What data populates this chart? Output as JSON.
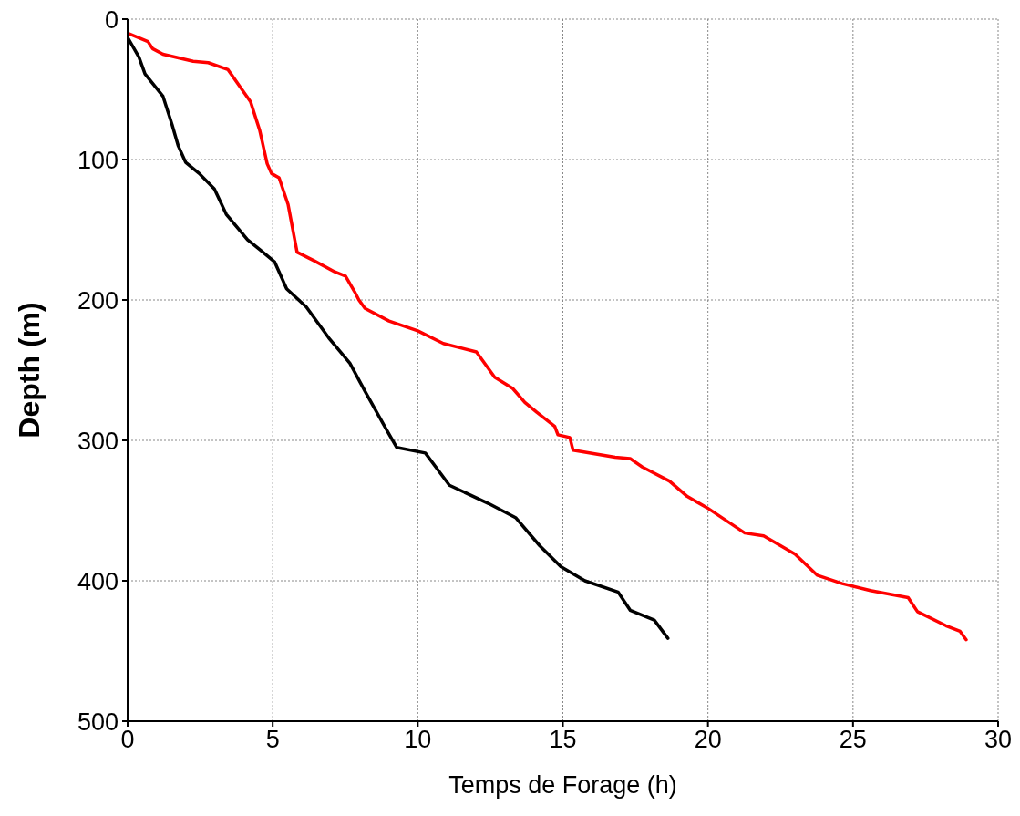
{
  "chart_data": {
    "type": "line",
    "xlabel": "Temps de Forage (h)",
    "ylabel": "Depth (m)",
    "xlim": [
      0,
      30
    ],
    "xticks": [
      0,
      5,
      10,
      15,
      20,
      25,
      30
    ],
    "ylim": [
      500,
      0
    ],
    "yticks": [
      0,
      100,
      200,
      300,
      400,
      500
    ],
    "grid": true,
    "marker": "none",
    "line_style": "solid",
    "series": [
      {
        "color": "#ff0000",
        "x": [
          0,
          0.7,
          0.86,
          1.22,
          2.26,
          2.78,
          3.46,
          3.87,
          4.24,
          4.55,
          4.81,
          4.96,
          5.22,
          5.53,
          5.84,
          6.42,
          7.14,
          7.51,
          7.82,
          7.97,
          8.18,
          9.01,
          10.0,
          10.88,
          12.02,
          12.65,
          13.27,
          13.69,
          14.1,
          14.72,
          14.83,
          15.24,
          15.35,
          16.8,
          17.32,
          17.74,
          18.67,
          19.29,
          19.97,
          21.27,
          21.92,
          23.0,
          23.76,
          24.63,
          25.6,
          26.9,
          27.22,
          28.2,
          28.69,
          28.9
        ],
        "values": [
          10,
          16,
          21,
          25,
          30,
          31,
          36,
          48,
          59,
          79,
          103,
          110,
          113,
          132,
          166,
          172,
          180,
          183,
          194,
          200,
          206,
          215,
          222,
          231,
          237,
          255,
          263,
          273,
          280,
          290,
          296,
          298,
          307,
          312,
          313,
          319,
          329,
          340,
          348,
          366,
          368,
          381,
          396,
          402,
          407,
          412,
          422,
          432,
          436,
          442
        ]
      },
      {
        "color": "#000000",
        "x": [
          0,
          0.39,
          0.6,
          1.22,
          1.53,
          1.74,
          2.0,
          2.47,
          2.99,
          3.4,
          4.13,
          4.55,
          5.07,
          5.48,
          6.16,
          6.93,
          7.66,
          8.18,
          8.91,
          9.27,
          10.26,
          11.09,
          12.44,
          13.37,
          14.2,
          14.93,
          15.76,
          16.9,
          17.32,
          18.15,
          18.62
        ],
        "values": [
          13,
          27,
          39,
          55,
          75,
          90,
          102,
          110,
          121,
          139,
          157,
          164,
          173,
          192,
          205,
          227,
          245,
          265,
          292,
          305,
          309,
          332,
          345,
          355,
          375,
          390,
          400,
          408,
          421,
          428,
          441
        ]
      }
    ]
  }
}
